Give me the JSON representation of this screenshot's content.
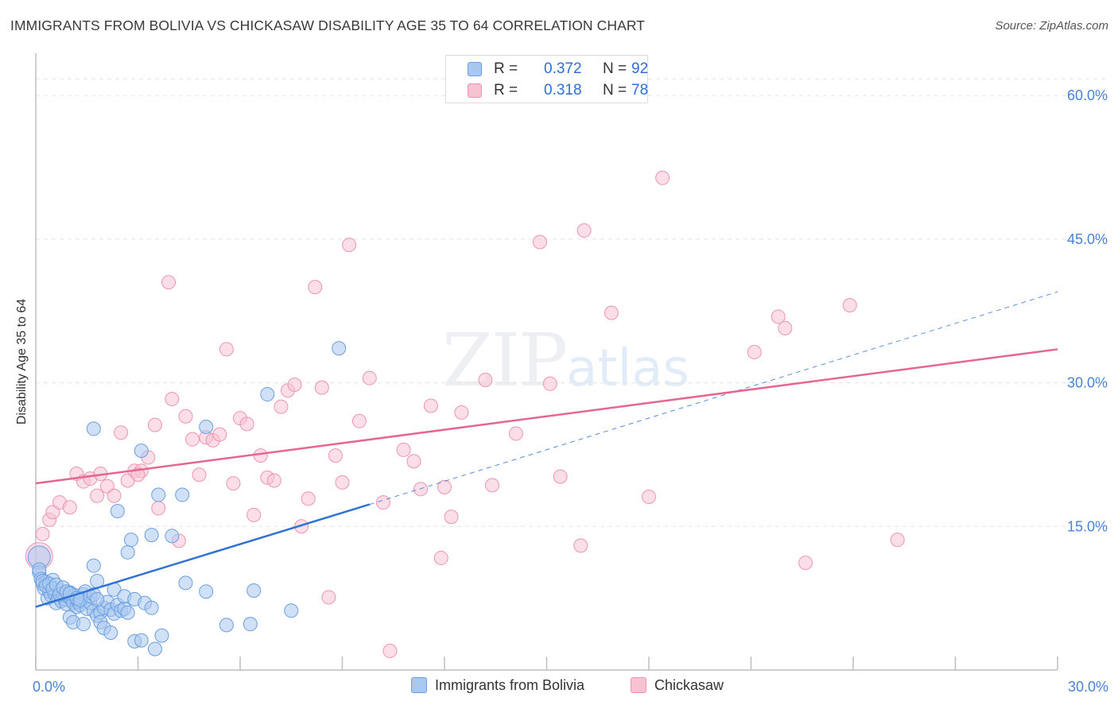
{
  "header": {
    "title": "IMMIGRANTS FROM BOLIVIA VS CHICKASAW DISABILITY AGE 35 TO 64 CORRELATION CHART",
    "source": "Source: ZipAtlas.com"
  },
  "watermark": {
    "zip": "ZIP",
    "atlas": "atlas"
  },
  "legend_top": {
    "rows": [
      {
        "r_label": "R =",
        "r_value": "0.372",
        "n_label": "N =",
        "n_value": "92"
      },
      {
        "r_label": "R =",
        "r_value": "0.318",
        "n_label": "N =",
        "n_value": "78"
      }
    ]
  },
  "legend_bottom": {
    "series1": "Immigrants from Bolivia",
    "series2": "Chickasaw"
  },
  "colors": {
    "blue_fill": "#a9c8f0",
    "blue_stroke": "#6a9fe0",
    "blue_line": "#2f72d4",
    "pink_fill": "#f7c3d3",
    "pink_stroke": "#ee94b1",
    "pink_line": "#e5678f",
    "grid": "#e3e3e3",
    "tick_label": "#4a82d6"
  },
  "chart_data": {
    "type": "scatter",
    "title": "IMMIGRANTS FROM BOLIVIA VS CHICKASAW DISABILITY AGE 35 TO 64 CORRELATION CHART",
    "xlabel": "",
    "ylabel": "Disability Age 35 to 64",
    "xlim": [
      0,
      30
    ],
    "ylim": [
      0,
      64
    ],
    "x_tick_labels": [
      {
        "value": 0,
        "label": "0.0%"
      },
      {
        "value": 30,
        "label": "30.0%"
      }
    ],
    "y_tick_labels": [
      {
        "value": 15,
        "label": "15.0%"
      },
      {
        "value": 30,
        "label": "30.0%"
      },
      {
        "value": 45,
        "label": "45.0%"
      },
      {
        "value": 60,
        "label": "60.0%"
      }
    ],
    "series": [
      {
        "name": "Immigrants from Bolivia",
        "R": 0.372,
        "N": 92,
        "trend": {
          "x0": 0,
          "y0": 6.6,
          "x1": 9.8,
          "y1": 17.3,
          "dash_x1": 30,
          "dash_y1": 39.5
        },
        "points": [
          [
            0.1,
            11.8
          ],
          [
            0.1,
            10.2
          ],
          [
            0.1,
            10.5
          ],
          [
            0.15,
            9.5
          ],
          [
            0.2,
            9.0
          ],
          [
            0.25,
            8.5
          ],
          [
            0.3,
            9.2
          ],
          [
            0.35,
            7.5
          ],
          [
            0.4,
            8.2
          ],
          [
            0.45,
            7.8
          ],
          [
            0.5,
            9.4
          ],
          [
            0.55,
            8.0
          ],
          [
            0.6,
            7.0
          ],
          [
            0.65,
            7.6
          ],
          [
            0.7,
            8.3
          ],
          [
            0.75,
            7.2
          ],
          [
            0.8,
            7.9
          ],
          [
            0.85,
            7.4
          ],
          [
            0.9,
            6.9
          ],
          [
            0.95,
            7.7
          ],
          [
            1.0,
            8.1
          ],
          [
            1.05,
            7.3
          ],
          [
            1.1,
            7.0
          ],
          [
            1.15,
            7.8
          ],
          [
            1.2,
            6.6
          ],
          [
            1.25,
            7.1
          ],
          [
            1.3,
            6.8
          ],
          [
            1.35,
            7.5
          ],
          [
            1.4,
            7.9
          ],
          [
            1.45,
            8.2
          ],
          [
            1.5,
            6.4
          ],
          [
            1.6,
            7.0
          ],
          [
            1.7,
            6.2
          ],
          [
            1.8,
            5.7
          ],
          [
            1.9,
            6.0
          ],
          [
            2.0,
            6.5
          ],
          [
            2.1,
            7.1
          ],
          [
            2.2,
            6.3
          ],
          [
            2.3,
            5.9
          ],
          [
            2.4,
            6.8
          ],
          [
            2.5,
            6.2
          ],
          [
            2.6,
            6.4
          ],
          [
            2.7,
            6.0
          ],
          [
            1.0,
            5.5
          ],
          [
            1.1,
            5.0
          ],
          [
            1.4,
            4.8
          ],
          [
            1.9,
            5.0
          ],
          [
            2.0,
            4.4
          ],
          [
            2.2,
            3.9
          ],
          [
            2.9,
            3.0
          ],
          [
            3.1,
            3.1
          ],
          [
            3.5,
            2.2
          ],
          [
            3.7,
            3.6
          ],
          [
            5.6,
            4.7
          ],
          [
            6.3,
            4.8
          ],
          [
            7.5,
            6.2
          ],
          [
            1.7,
            25.2
          ],
          [
            3.1,
            22.9
          ],
          [
            5.0,
            25.4
          ],
          [
            6.8,
            28.8
          ],
          [
            8.9,
            33.6
          ],
          [
            2.4,
            16.6
          ],
          [
            3.6,
            18.3
          ],
          [
            4.3,
            18.3
          ],
          [
            2.7,
            12.3
          ],
          [
            3.4,
            14.1
          ],
          [
            4.0,
            14.0
          ],
          [
            2.8,
            13.6
          ],
          [
            1.7,
            10.9
          ],
          [
            1.8,
            9.3
          ],
          [
            4.4,
            9.1
          ],
          [
            5.0,
            8.2
          ],
          [
            6.4,
            8.3
          ],
          [
            2.3,
            8.4
          ],
          [
            2.6,
            7.7
          ],
          [
            2.9,
            7.4
          ],
          [
            3.2,
            7.0
          ],
          [
            3.4,
            6.5
          ],
          [
            0.2,
            9.3
          ],
          [
            0.3,
            8.8
          ],
          [
            0.4,
            9.0
          ],
          [
            0.5,
            8.5
          ],
          [
            0.6,
            8.9
          ],
          [
            0.7,
            7.9
          ],
          [
            0.8,
            8.6
          ],
          [
            0.9,
            8.2
          ],
          [
            1.0,
            8.0
          ],
          [
            1.2,
            7.5
          ],
          [
            1.3,
            7.3
          ],
          [
            1.6,
            7.7
          ],
          [
            1.7,
            7.9
          ],
          [
            1.8,
            7.4
          ]
        ]
      },
      {
        "name": "Chickasaw",
        "R": 0.318,
        "N": 78,
        "trend": {
          "x0": 0,
          "y0": 19.5,
          "x1": 30,
          "y1": 33.5
        },
        "points": [
          [
            0.1,
            11.9
          ],
          [
            0.2,
            14.2
          ],
          [
            0.4,
            15.7
          ],
          [
            0.5,
            16.5
          ],
          [
            0.7,
            17.5
          ],
          [
            1.0,
            17.0
          ],
          [
            1.2,
            20.5
          ],
          [
            1.4,
            19.7
          ],
          [
            1.6,
            20.0
          ],
          [
            1.8,
            18.2
          ],
          [
            1.9,
            20.5
          ],
          [
            2.1,
            19.2
          ],
          [
            2.3,
            18.2
          ],
          [
            2.5,
            24.8
          ],
          [
            2.7,
            19.8
          ],
          [
            2.9,
            20.8
          ],
          [
            3.1,
            20.8
          ],
          [
            3.3,
            22.2
          ],
          [
            3.5,
            25.6
          ],
          [
            3.6,
            16.9
          ],
          [
            3.9,
            40.5
          ],
          [
            4.0,
            28.3
          ],
          [
            4.2,
            13.5
          ],
          [
            4.4,
            26.5
          ],
          [
            4.6,
            24.1
          ],
          [
            4.8,
            20.4
          ],
          [
            5.0,
            24.3
          ],
          [
            5.2,
            24.0
          ],
          [
            5.4,
            24.6
          ],
          [
            5.6,
            33.5
          ],
          [
            5.8,
            19.5
          ],
          [
            6.0,
            26.3
          ],
          [
            6.2,
            25.7
          ],
          [
            6.4,
            16.2
          ],
          [
            6.6,
            22.4
          ],
          [
            6.8,
            20.1
          ],
          [
            7.0,
            19.8
          ],
          [
            7.2,
            27.5
          ],
          [
            7.4,
            29.2
          ],
          [
            7.6,
            29.8
          ],
          [
            7.8,
            15.0
          ],
          [
            8.0,
            17.9
          ],
          [
            8.2,
            40.0
          ],
          [
            8.4,
            29.5
          ],
          [
            8.6,
            7.6
          ],
          [
            8.8,
            22.4
          ],
          [
            9.0,
            19.6
          ],
          [
            9.2,
            44.4
          ],
          [
            9.5,
            26.0
          ],
          [
            9.8,
            30.5
          ],
          [
            10.2,
            17.5
          ],
          [
            10.4,
            2.0
          ],
          [
            10.8,
            23.0
          ],
          [
            11.1,
            21.8
          ],
          [
            11.3,
            18.9
          ],
          [
            11.6,
            27.6
          ],
          [
            11.9,
            11.7
          ],
          [
            12.0,
            19.1
          ],
          [
            12.2,
            16.0
          ],
          [
            12.5,
            26.9
          ],
          [
            13.2,
            30.3
          ],
          [
            13.4,
            19.3
          ],
          [
            14.1,
            24.7
          ],
          [
            14.8,
            44.7
          ],
          [
            15.1,
            29.9
          ],
          [
            15.4,
            20.2
          ],
          [
            16.0,
            13.0
          ],
          [
            16.1,
            45.9
          ],
          [
            16.9,
            37.3
          ],
          [
            18.0,
            18.1
          ],
          [
            18.4,
            51.4
          ],
          [
            21.1,
            33.2
          ],
          [
            21.8,
            36.9
          ],
          [
            22.0,
            35.7
          ],
          [
            22.6,
            11.2
          ],
          [
            23.9,
            38.1
          ],
          [
            25.3,
            13.6
          ],
          [
            3.0,
            20.4
          ]
        ]
      }
    ]
  }
}
